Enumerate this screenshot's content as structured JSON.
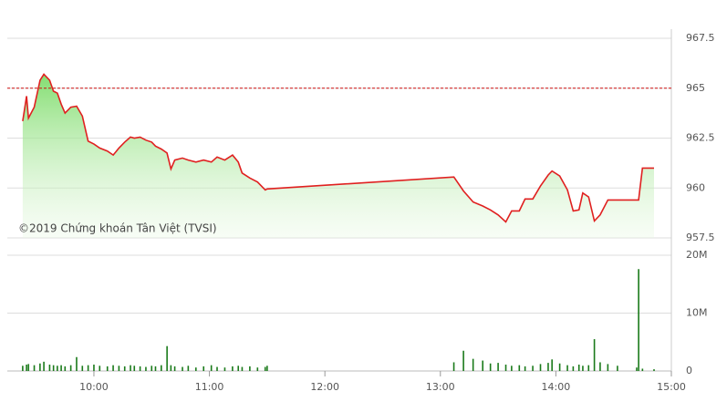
{
  "chart_data": {
    "type": "intraday",
    "credit": "©2019 Chứng khoán Tân Việt (TVSI)",
    "x": [
      "09:23",
      "09:25",
      "09:26",
      "09:29",
      "09:32",
      "09:34",
      "09:37",
      "09:39",
      "09:41",
      "09:43",
      "09:45",
      "09:48",
      "09:51",
      "09:54",
      "09:57",
      "10:00",
      "10:03",
      "10:07",
      "10:10",
      "10:13",
      "10:16",
      "10:19",
      "10:21",
      "10:24",
      "10:27",
      "10:30",
      "10:32",
      "10:35",
      "10:38",
      "10:40",
      "10:42",
      "10:46",
      "10:49",
      "10:53",
      "10:57",
      "11:01",
      "11:04",
      "11:08",
      "11:12",
      "11:15",
      "11:17",
      "11:21",
      "11:25",
      "11:29",
      "11:30",
      "13:07",
      "13:12",
      "13:17",
      "13:22",
      "13:26",
      "13:30",
      "13:34",
      "13:37",
      "13:41",
      "13:44",
      "13:48",
      "13:52",
      "13:56",
      "13:58",
      "14:02",
      "14:06",
      "14:09",
      "14:12",
      "14:14",
      "14:17",
      "14:20",
      "14:23",
      "14:27",
      "14:32",
      "14:42",
      "14:43",
      "14:45",
      "14:51"
    ],
    "price": {
      "color": "#e02020",
      "values": [
        963.35,
        964.6,
        963.5,
        964.05,
        965.4,
        965.7,
        965.4,
        964.85,
        964.75,
        964.2,
        963.75,
        964.05,
        964.1,
        963.6,
        962.35,
        962.2,
        962.0,
        961.85,
        961.65,
        962.0,
        962.3,
        962.55,
        962.5,
        962.55,
        962.4,
        962.3,
        962.1,
        961.95,
        961.75,
        960.95,
        961.4,
        961.5,
        961.4,
        961.3,
        961.4,
        961.3,
        961.55,
        961.4,
        961.65,
        961.3,
        960.75,
        960.5,
        960.3,
        959.9,
        959.95,
        960.55,
        959.85,
        959.3,
        959.1,
        958.9,
        958.65,
        958.3,
        958.85,
        958.85,
        959.45,
        959.45,
        960.1,
        960.65,
        960.85,
        960.6,
        959.9,
        958.85,
        958.9,
        959.75,
        959.55,
        958.35,
        958.65,
        959.4,
        959.4,
        959.4,
        959.4,
        961.0,
        961.0
      ]
    },
    "volume": {
      "color": "#1a7a1a",
      "values": [
        900000,
        1100000,
        1200000,
        1000000,
        1300000,
        1600000,
        1100000,
        1000000,
        900000,
        1000000,
        800000,
        1000000,
        2400000,
        900000,
        1000000,
        1100000,
        900000,
        800000,
        1000000,
        900000,
        800000,
        1000000,
        900000,
        800000,
        700000,
        900000,
        800000,
        1000000,
        4300000,
        1000000,
        800000,
        700000,
        900000,
        600000,
        800000,
        1000000,
        700000,
        600000,
        800000,
        900000,
        700000,
        800000,
        600000,
        700000,
        900000,
        1500000,
        3500000,
        2100000,
        1800000,
        1300000,
        1400000,
        1100000,
        900000,
        1000000,
        800000,
        900000,
        1200000,
        1400000,
        2000000,
        1300000,
        1000000,
        800000,
        1100000,
        900000,
        1000000,
        5500000,
        1500000,
        1200000,
        900000,
        600000,
        17600000,
        400000,
        300000
      ]
    },
    "reference": 965,
    "xlim": [
      "09:15",
      "15:00"
    ],
    "xticks": [
      "10:00",
      "11:00",
      "12:00",
      "13:00",
      "14:00",
      "15:00"
    ],
    "ylim": [
      957.5,
      967.5
    ],
    "yticks": [
      957.5,
      960,
      962.5,
      965,
      967.5
    ],
    "y2lim": [
      0,
      20000000
    ],
    "y2ticks": [
      0,
      {
        "value": 10000000,
        "label": "10M"
      },
      {
        "value": 20000000,
        "label": "20M"
      }
    ],
    "grid": true
  }
}
